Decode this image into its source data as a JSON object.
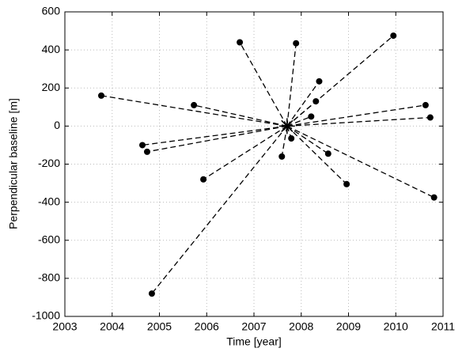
{
  "chart_data": {
    "type": "scatter",
    "x_label": "Time [year]",
    "y_label": "Perpendicular baseline [m]",
    "master": {
      "x": 2007.7,
      "y": 0
    },
    "x": [
      2003.77,
      2005.73,
      2004.64,
      2004.74,
      2005.93,
      2004.84,
      2006.7,
      2007.89,
      2009.95,
      2008.38,
      2008.31,
      2008.21,
      2010.63,
      2010.73,
      2010.81,
      2008.96,
      2008.57,
      2007.79,
      2007.59
    ],
    "values": [
      160,
      110,
      -100,
      -135,
      -280,
      -880,
      440,
      435,
      475,
      235,
      130,
      50,
      110,
      45,
      -375,
      -305,
      -145,
      -65,
      -160
    ],
    "color": "#000000",
    "xlim": [
      2003,
      2011
    ],
    "xticks": [
      2003,
      2004,
      2005,
      2006,
      2007,
      2008,
      2009,
      2010,
      2011
    ],
    "ylim": [
      -1000,
      600
    ],
    "yticks": [
      -1000,
      -800,
      -600,
      -400,
      -200,
      0,
      200,
      400,
      600
    ],
    "grid": true
  }
}
